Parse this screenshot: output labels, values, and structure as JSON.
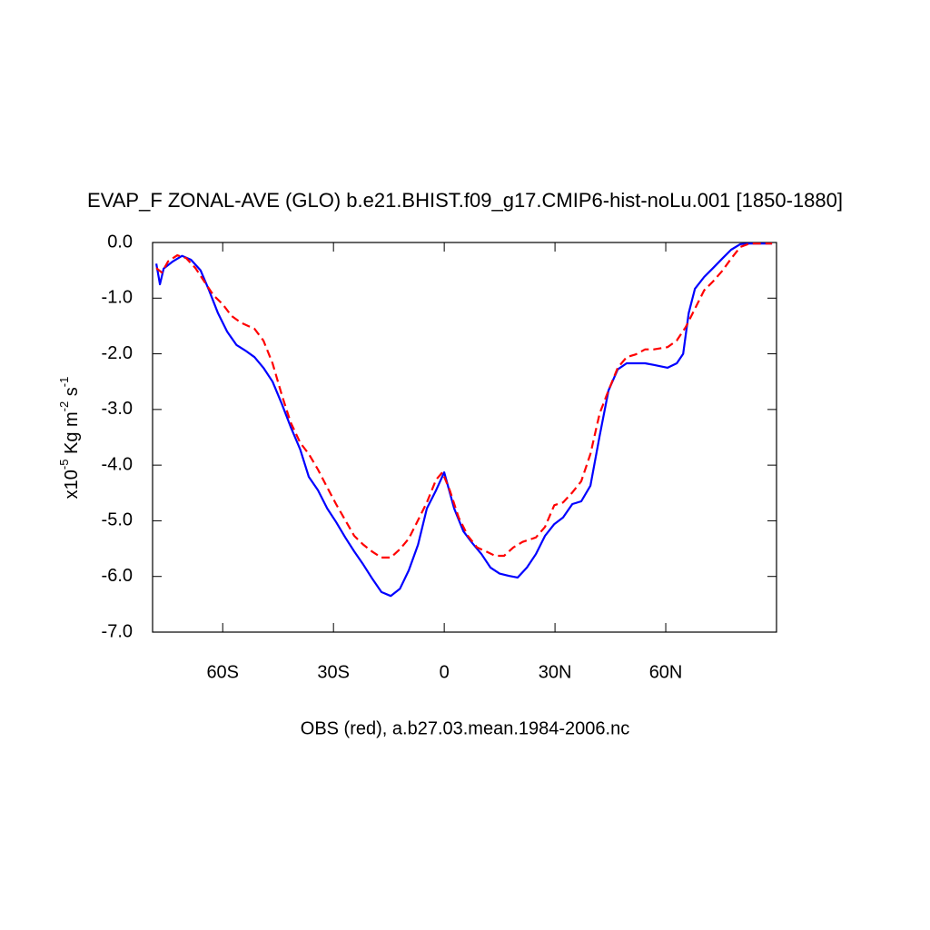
{
  "chart_data": {
    "type": "line",
    "title": "EVAP_F ZONAL-AVE (GLO) b.e21.BHIST.f09_g17.CMIP6-hist-noLu.001 [1850-1880]",
    "ylabel_parts": [
      "x10",
      "-5",
      " Kg m",
      "-2",
      " s",
      "-1"
    ],
    "xlabel": "OBS (red), a.b27.03.mean.1984-2006.nc",
    "xlim": [
      -79,
      90
    ],
    "ylim": [
      -7,
      0
    ],
    "xticks": [
      {
        "value": -60,
        "label": "60S"
      },
      {
        "value": -30,
        "label": "30S"
      },
      0,
      {
        "value": 30,
        "label": "30N"
      },
      {
        "value": 60,
        "label": "60N"
      }
    ],
    "yticks": [
      {
        "value": 0,
        "label": "0.0"
      },
      {
        "value": -1,
        "label": "-1.0"
      },
      {
        "value": -2,
        "label": "-2.0"
      },
      {
        "value": -3,
        "label": "-3.0"
      },
      {
        "value": -4,
        "label": "-4.0"
      },
      {
        "value": -5,
        "label": "-5.0"
      },
      {
        "value": -6,
        "label": "-6.0"
      },
      {
        "value": -7,
        "label": "-7.0"
      }
    ],
    "series": [
      {
        "color": "#0000ff",
        "line_style": "solid",
        "x": [
          -78,
          -77,
          -76,
          -73.5,
          -71,
          -68.6,
          -66,
          -63.7,
          -61.3,
          -58.8,
          -56.3,
          -53.9,
          -51.4,
          -49,
          -46.5,
          -44,
          -41.6,
          -39,
          -36.7,
          -34.2,
          -31.7,
          -29.3,
          -26.8,
          -24.4,
          -21.9,
          -19.4,
          -17,
          -14.5,
          -12,
          -9.6,
          -7.1,
          -4.7,
          -2.2,
          0,
          2.7,
          5.2,
          7.6,
          10.1,
          12.5,
          15,
          17.5,
          19.9,
          22.4,
          24.8,
          27.3,
          29.8,
          32.2,
          34.7,
          37.1,
          39.6,
          42.1,
          44.5,
          47,
          49.4,
          51.9,
          54.4,
          56.8,
          60.5,
          63,
          64.7,
          66.2,
          67.9,
          70.4,
          72.8,
          75.3,
          77.7,
          80.2,
          82.7,
          85.1,
          88.8
        ],
        "values": [
          -0.38,
          -0.75,
          -0.47,
          -0.34,
          -0.24,
          -0.31,
          -0.5,
          -0.86,
          -1.27,
          -1.6,
          -1.84,
          -1.94,
          -2.06,
          -2.25,
          -2.5,
          -2.9,
          -3.31,
          -3.72,
          -4.21,
          -4.45,
          -4.78,
          -5.02,
          -5.3,
          -5.55,
          -5.79,
          -6.05,
          -6.28,
          -6.35,
          -6.22,
          -5.89,
          -5.43,
          -4.78,
          -4.45,
          -4.13,
          -4.78,
          -5.19,
          -5.4,
          -5.6,
          -5.84,
          -5.95,
          -5.99,
          -6.02,
          -5.84,
          -5.6,
          -5.27,
          -5.06,
          -4.94,
          -4.7,
          -4.65,
          -4.37,
          -3.47,
          -2.66,
          -2.28,
          -2.17,
          -2.17,
          -2.17,
          -2.2,
          -2.25,
          -2.17,
          -2.0,
          -1.27,
          -0.83,
          -0.62,
          -0.46,
          -0.29,
          -0.13,
          -0.03,
          -0.02,
          -0.02,
          -0.02
        ]
      },
      {
        "color": "#ff0000",
        "line_style": "dashed",
        "x": [
          -78,
          -76.5,
          -74.8,
          -72.3,
          -69.9,
          -67.4,
          -65,
          -62.5,
          -60,
          -57.6,
          -55.1,
          -51.4,
          -49,
          -46.5,
          -44,
          -41.6,
          -39,
          -36.7,
          -34.2,
          -31.7,
          -29.3,
          -26.8,
          -24.4,
          -21.9,
          -19.4,
          -17,
          -14.5,
          -12,
          -9.6,
          -7.1,
          -4.7,
          -2.2,
          -0.5,
          1.5,
          3.9,
          6.4,
          8.9,
          11.3,
          13.8,
          16.2,
          18.7,
          21.2,
          24.8,
          27.3,
          29.8,
          32.2,
          34.7,
          37.1,
          39.6,
          42.1,
          44.5,
          47,
          49.4,
          51.9,
          54.4,
          56.8,
          60.5,
          63,
          65.4,
          67.9,
          70.4,
          72.8,
          75.3,
          77.7,
          80.2,
          82.7,
          88.8
        ],
        "values": [
          -0.46,
          -0.54,
          -0.34,
          -0.23,
          -0.28,
          -0.46,
          -0.7,
          -0.95,
          -1.11,
          -1.32,
          -1.44,
          -1.55,
          -1.76,
          -2.17,
          -2.74,
          -3.23,
          -3.6,
          -3.8,
          -4.08,
          -4.4,
          -4.7,
          -4.99,
          -5.27,
          -5.43,
          -5.56,
          -5.66,
          -5.66,
          -5.51,
          -5.32,
          -4.99,
          -4.67,
          -4.26,
          -4.13,
          -4.45,
          -4.94,
          -5.27,
          -5.48,
          -5.55,
          -5.63,
          -5.63,
          -5.48,
          -5.38,
          -5.3,
          -5.11,
          -4.72,
          -4.67,
          -4.49,
          -4.29,
          -3.8,
          -3.07,
          -2.66,
          -2.25,
          -2.06,
          -2.01,
          -1.92,
          -1.92,
          -1.88,
          -1.76,
          -1.52,
          -1.19,
          -0.86,
          -0.7,
          -0.51,
          -0.29,
          -0.08,
          -0.02,
          -0.02
        ]
      }
    ]
  }
}
